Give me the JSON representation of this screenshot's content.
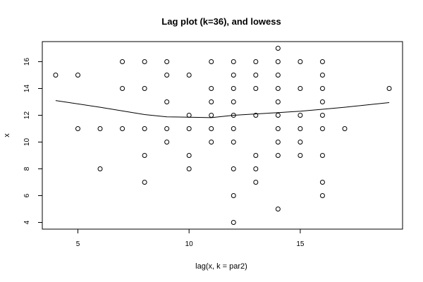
{
  "chart_data": {
    "type": "scatter",
    "title": "Lag plot (k=36), and lowess",
    "xlabel": "lag(x, k = par2)",
    "ylabel": "x",
    "xlim": [
      3.4,
      19.6
    ],
    "ylim": [
      3.5,
      17.5
    ],
    "x_ticks": [
      5,
      10,
      15
    ],
    "y_ticks": [
      4,
      6,
      8,
      10,
      12,
      14,
      16
    ],
    "grid": false,
    "legend": "none",
    "point_color": "#000000",
    "line_color": "#000000",
    "points": [
      [
        4,
        15
      ],
      [
        5,
        15
      ],
      [
        5,
        11
      ],
      [
        6,
        11
      ],
      [
        6,
        8
      ],
      [
        7,
        16
      ],
      [
        7,
        14
      ],
      [
        7,
        11
      ],
      [
        8,
        16
      ],
      [
        8,
        14
      ],
      [
        8,
        11
      ],
      [
        8,
        9
      ],
      [
        8,
        7
      ],
      [
        9,
        16
      ],
      [
        9,
        15
      ],
      [
        9,
        13
      ],
      [
        9,
        11
      ],
      [
        9,
        10
      ],
      [
        10,
        15
      ],
      [
        10,
        12
      ],
      [
        10,
        11
      ],
      [
        10,
        9
      ],
      [
        10,
        8
      ],
      [
        11,
        16
      ],
      [
        11,
        14
      ],
      [
        11,
        13
      ],
      [
        11,
        12
      ],
      [
        11,
        11
      ],
      [
        11,
        10
      ],
      [
        12,
        16
      ],
      [
        12,
        15
      ],
      [
        12,
        14
      ],
      [
        12,
        13
      ],
      [
        12,
        12
      ],
      [
        12,
        11
      ],
      [
        12,
        10
      ],
      [
        12,
        8
      ],
      [
        12,
        6
      ],
      [
        12,
        4
      ],
      [
        13,
        16
      ],
      [
        13,
        15
      ],
      [
        13,
        14
      ],
      [
        13,
        12
      ],
      [
        13,
        9
      ],
      [
        13,
        8
      ],
      [
        13,
        7
      ],
      [
        14,
        17
      ],
      [
        14,
        16
      ],
      [
        14,
        15
      ],
      [
        14,
        14
      ],
      [
        14,
        13
      ],
      [
        14,
        12
      ],
      [
        14,
        11
      ],
      [
        14,
        10
      ],
      [
        14,
        9
      ],
      [
        14,
        5
      ],
      [
        15,
        16
      ],
      [
        15,
        14
      ],
      [
        15,
        12
      ],
      [
        15,
        11
      ],
      [
        15,
        10
      ],
      [
        15,
        9
      ],
      [
        16,
        16
      ],
      [
        16,
        15
      ],
      [
        16,
        14
      ],
      [
        16,
        13
      ],
      [
        16,
        12
      ],
      [
        16,
        11
      ],
      [
        16,
        9
      ],
      [
        16,
        7
      ],
      [
        16,
        6
      ],
      [
        17,
        11
      ],
      [
        19,
        14
      ]
    ],
    "lowess": {
      "name": "lowess",
      "x": [
        4,
        6,
        8,
        9,
        10,
        11,
        12,
        13,
        14,
        15,
        16,
        17,
        19
      ],
      "y": [
        13.1,
        12.6,
        12.05,
        11.88,
        11.86,
        11.82,
        12.0,
        12.1,
        12.2,
        12.3,
        12.45,
        12.6,
        12.95
      ]
    }
  }
}
